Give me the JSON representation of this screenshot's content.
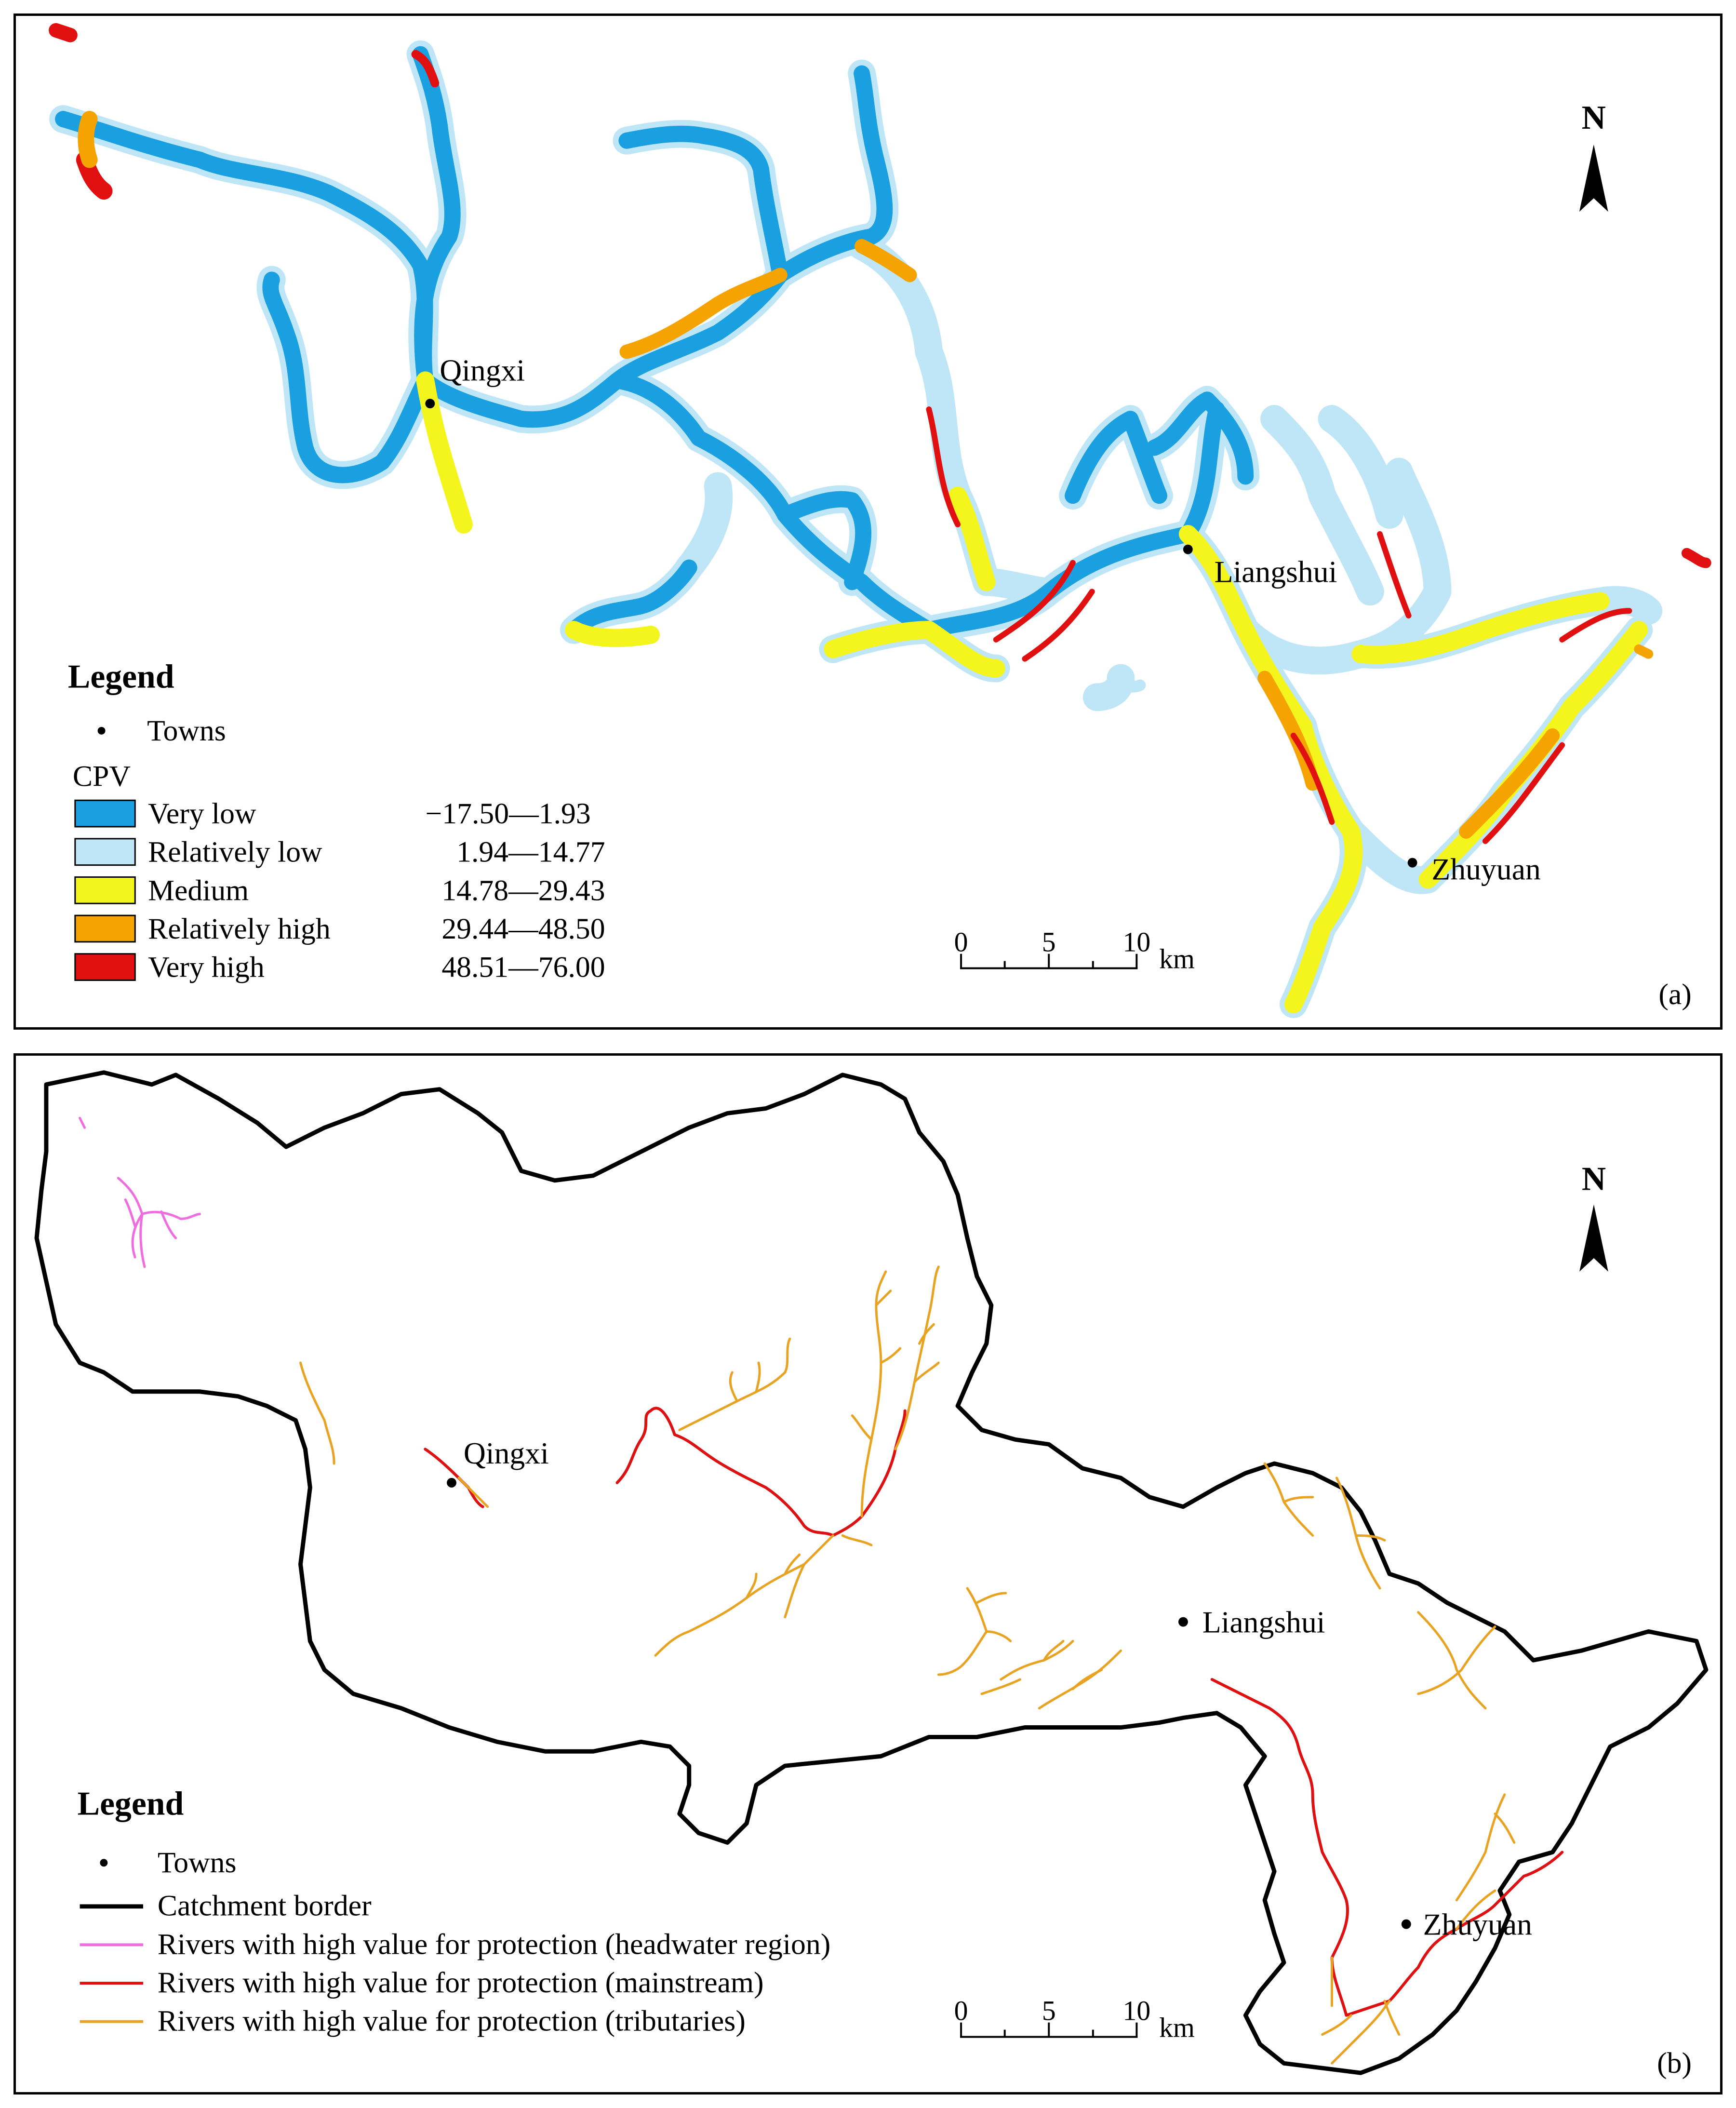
{
  "panels": [
    {
      "label": "(a)",
      "north": "N",
      "towns": [
        "Qingxi",
        "Liangshui",
        "Zhuyuan"
      ],
      "legend": {
        "title": "Legend",
        "towns_label": "Towns",
        "cpv_label": "CPV",
        "classes": [
          {
            "name": "Very low",
            "range": "−17.50—1.93",
            "color": "#1aa0e0"
          },
          {
            "name": "Relatively low",
            "range": "1.94—14.77",
            "color": "#bfe6f7"
          },
          {
            "name": "Medium",
            "range": "14.78—29.43",
            "color": "#f5f51e"
          },
          {
            "name": "Relatively high",
            "range": "29.44—48.50",
            "color": "#f5a300"
          },
          {
            "name": "Very high",
            "range": "48.51—76.00",
            "color": "#e01010"
          }
        ]
      },
      "scale": {
        "ticks": [
          "0",
          "5",
          "10"
        ],
        "unit": "km"
      }
    },
    {
      "label": "(b)",
      "north": "N",
      "towns": [
        "Qingxi",
        "Liangshui",
        "Zhuyuan"
      ],
      "legend": {
        "title": "Legend",
        "items": [
          {
            "name": "Towns",
            "symbol": "dot"
          },
          {
            "name": "Catchment border",
            "color": "#000000"
          },
          {
            "name": "Rivers with high value for protection (headwater region)",
            "color": "#ee6ee0"
          },
          {
            "name": "Rivers with high value for protection (mainstream)",
            "color": "#dd1111"
          },
          {
            "name": "Rivers with high value for protection (tributaries)",
            "color": "#e9a323"
          }
        ]
      },
      "scale": {
        "ticks": [
          "0",
          "5",
          "10"
        ],
        "unit": "km"
      }
    }
  ]
}
